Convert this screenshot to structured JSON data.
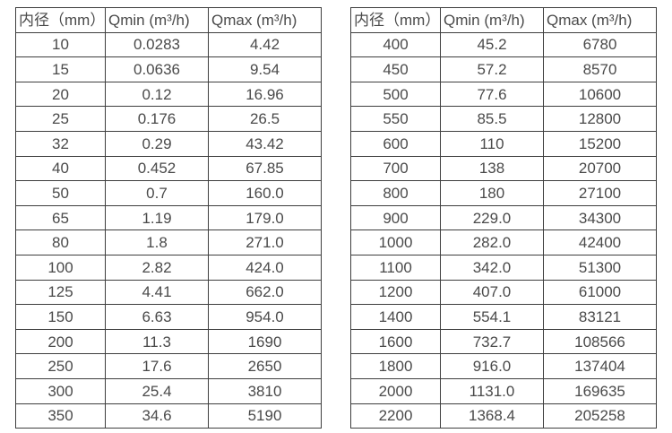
{
  "colors": {
    "background": "#ffffff",
    "border": "#3e3e3e",
    "text": "#4a4a4a"
  },
  "tables": [
    {
      "name": "flow-range-table-small-diameters",
      "headers": [
        "内径（mm）",
        "Qmin (m³/h)",
        "Qmax (m³/h)"
      ],
      "rows": [
        [
          "10",
          "0.0283",
          "4.42"
        ],
        [
          "15",
          "0.0636",
          "9.54"
        ],
        [
          "20",
          "0.12",
          "16.96"
        ],
        [
          "25",
          "0.176",
          "26.5"
        ],
        [
          "32",
          "0.29",
          "43.42"
        ],
        [
          "40",
          "0.452",
          "67.85"
        ],
        [
          "50",
          "0.7",
          "160.0"
        ],
        [
          "65",
          "1.19",
          "179.0"
        ],
        [
          "80",
          "1.8",
          "271.0"
        ],
        [
          "100",
          "2.82",
          "424.0"
        ],
        [
          "125",
          "4.41",
          "662.0"
        ],
        [
          "150",
          "6.63",
          "954.0"
        ],
        [
          "200",
          "11.3",
          "1690"
        ],
        [
          "250",
          "17.6",
          "2650"
        ],
        [
          "300",
          "25.4",
          "3810"
        ],
        [
          "350",
          "34.6",
          "5190"
        ]
      ]
    },
    {
      "name": "flow-range-table-large-diameters",
      "headers": [
        "内径（mm）",
        "Qmin (m³/h)",
        "Qmax (m³/h)"
      ],
      "rows": [
        [
          "400",
          "45.2",
          "6780"
        ],
        [
          "450",
          "57.2",
          "8570"
        ],
        [
          "500",
          "77.6",
          "10600"
        ],
        [
          "550",
          "85.5",
          "12800"
        ],
        [
          "600",
          "110",
          "15200"
        ],
        [
          "700",
          "138",
          "20700"
        ],
        [
          "800",
          "180",
          "27100"
        ],
        [
          "900",
          "229.0",
          "34300"
        ],
        [
          "1000",
          "282.0",
          "42400"
        ],
        [
          "1100",
          "342.0",
          "51300"
        ],
        [
          "1200",
          "407.0",
          "61000"
        ],
        [
          "1400",
          "554.1",
          "83121"
        ],
        [
          "1600",
          "732.7",
          "108566"
        ],
        [
          "1800",
          "916.0",
          "137404"
        ],
        [
          "2000",
          "1131.0",
          "169635"
        ],
        [
          "2200",
          "1368.4",
          "205258"
        ]
      ]
    }
  ]
}
